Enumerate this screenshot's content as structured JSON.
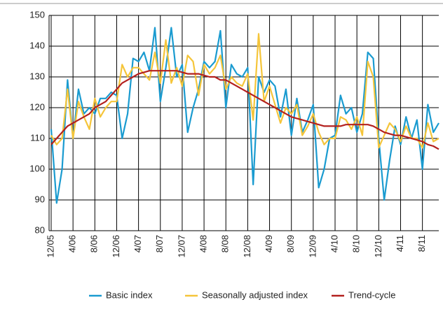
{
  "chart_data": {
    "type": "line",
    "categories": [
      "12/05",
      null,
      null,
      null,
      "4/06",
      null,
      null,
      null,
      "8/06",
      null,
      null,
      null,
      "12/06",
      null,
      null,
      null,
      "4/07",
      null,
      null,
      null,
      "8/07",
      null,
      null,
      null,
      "12/07",
      null,
      null,
      null,
      "4/08",
      null,
      null,
      null,
      "8/08",
      null,
      null,
      null,
      "12/08",
      null,
      null,
      null,
      "4/09",
      null,
      null,
      null,
      "8/09",
      null,
      null,
      null,
      "12/09",
      null,
      null,
      null,
      "4/10",
      null,
      null,
      null,
      "8/10",
      null,
      null,
      null,
      "12/10",
      null,
      null,
      null,
      "4/11",
      null,
      null,
      null,
      "8/11",
      null,
      null,
      null
    ],
    "series": [
      {
        "name": "Basic index",
        "color": "#1a9bd0",
        "values": [
          113,
          89,
          100,
          129,
          110,
          126,
          118,
          120,
          118,
          123,
          123,
          125,
          124,
          110,
          118,
          136,
          135,
          138,
          132,
          146,
          122,
          133,
          146,
          130,
          134,
          112,
          120,
          126,
          135,
          133,
          135,
          145,
          120,
          134,
          131,
          130,
          133,
          95,
          130,
          125,
          129,
          127,
          117,
          126,
          111,
          123,
          112,
          116,
          121,
          94,
          100,
          110,
          111,
          124,
          118,
          120,
          112,
          118,
          138,
          136,
          110,
          90,
          103,
          114,
          108,
          117,
          110,
          116,
          100,
          121,
          112,
          115
        ]
      },
      {
        "name": "Seasonally adjusted index",
        "color": "#f5c53a",
        "values": [
          111,
          108,
          110,
          126,
          110,
          122,
          117,
          113,
          123,
          117,
          120,
          122,
          122,
          134,
          130,
          133,
          133,
          131,
          129,
          138,
          128,
          142,
          128,
          133,
          127,
          137,
          135,
          124,
          134,
          131,
          133,
          137,
          126,
          130,
          128,
          127,
          131,
          116,
          144,
          122,
          127,
          121,
          115,
          120,
          118,
          121,
          111,
          114,
          118,
          112,
          108,
          110,
          110,
          117,
          116,
          113,
          117,
          111,
          135,
          130,
          107,
          111,
          115,
          113,
          109,
          114,
          110,
          110,
          107,
          115,
          109,
          110
        ]
      },
      {
        "name": "Trend-cycle",
        "color": "#b3201e",
        "values": [
          108,
          110,
          112,
          114,
          115,
          116,
          117,
          118,
          120,
          121,
          122,
          124,
          126,
          128,
          129,
          130,
          131,
          131.5,
          132,
          132,
          132,
          132,
          132,
          132,
          131.5,
          131,
          131,
          131,
          130.5,
          130,
          130,
          129,
          129,
          128,
          127,
          126,
          125,
          124,
          123,
          122,
          121,
          120,
          119,
          118,
          117,
          116.5,
          116,
          115.5,
          115,
          114.5,
          114,
          114,
          114,
          114,
          114.5,
          114.5,
          114.5,
          114.5,
          114.5,
          114,
          113,
          112,
          111.5,
          111,
          111,
          110.5,
          110,
          109.5,
          109,
          108,
          107.5,
          106.5
        ]
      }
    ],
    "ylim": [
      80,
      150
    ],
    "yticks": [
      80,
      90,
      100,
      110,
      120,
      130,
      140,
      150
    ],
    "grid": true
  }
}
